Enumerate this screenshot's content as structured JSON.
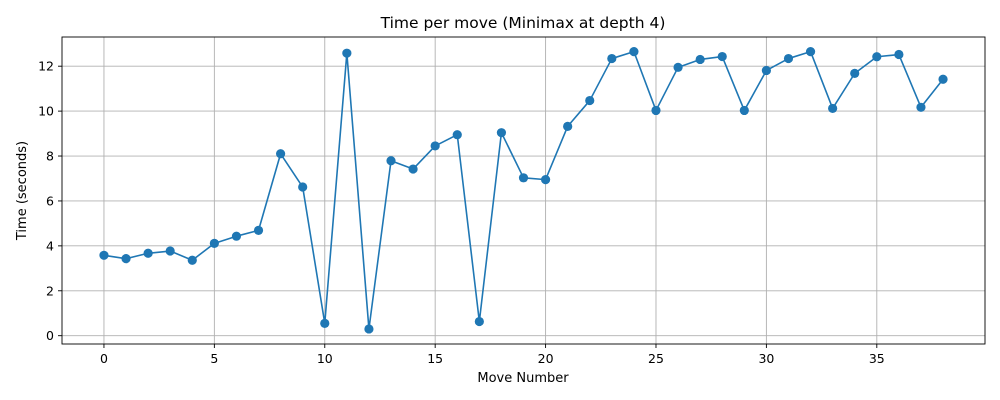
{
  "chart_data": {
    "type": "line",
    "title": "Time per move (Minimax at depth 4)",
    "xlabel": "Move Number",
    "ylabel": "Time (seconds)",
    "xlim": [
      -1.9,
      39.9
    ],
    "ylim": [
      -0.37,
      13.3
    ],
    "xticks": [
      0,
      5,
      10,
      15,
      20,
      25,
      30,
      35
    ],
    "yticks": [
      0,
      2,
      4,
      6,
      8,
      10,
      12
    ],
    "grid": true,
    "legend": "none",
    "series": [
      {
        "color": "#1f77b4",
        "marker": "circle",
        "x": [
          0,
          1,
          2,
          3,
          4,
          5,
          6,
          7,
          8,
          9,
          10,
          11,
          12,
          13,
          14,
          15,
          16,
          17,
          18,
          19,
          20,
          21,
          22,
          23,
          24,
          25,
          26,
          27,
          28,
          29,
          30,
          31,
          32,
          33,
          34,
          35,
          36,
          37,
          38
        ],
        "y": [
          3.58,
          3.43,
          3.67,
          3.77,
          3.36,
          4.11,
          4.43,
          4.69,
          8.1,
          6.62,
          0.55,
          12.58,
          0.3,
          7.79,
          7.42,
          8.45,
          8.95,
          0.63,
          9.04,
          7.03,
          6.95,
          9.32,
          10.47,
          12.34,
          12.65,
          10.03,
          11.95,
          12.3,
          12.43,
          10.03,
          11.81,
          12.34,
          12.65,
          10.12,
          11.68,
          12.42,
          12.52,
          10.17,
          11.42
        ]
      }
    ]
  }
}
